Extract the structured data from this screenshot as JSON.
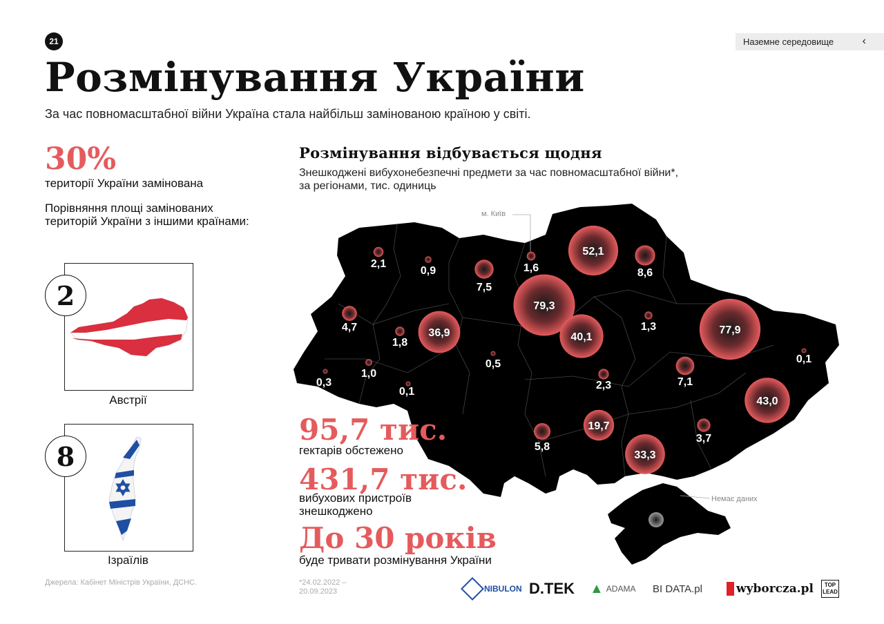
{
  "page_number": "21",
  "section_tab": {
    "label": "Наземне середовище"
  },
  "title": "Розмінування України",
  "subtitle": "За час повномасштабної війни Україна стала найбільш замінованою країною у світі.",
  "mined_share": {
    "value": "30%",
    "label": "території України замінована"
  },
  "comparison": {
    "label": "Порівняння площі замінованих територій України з іншими країнами:",
    "items": [
      {
        "number": "2",
        "country": "Австрії"
      },
      {
        "number": "8",
        "country": "Ізраїлів"
      }
    ]
  },
  "sources": "Джерела: Кабінет Міністрів України, ДСНС.",
  "chart_data": {
    "type": "bubble-map",
    "title": "Розмінування відбувається щодня",
    "subtitle_line1": "Знешкоджені вибухонебезпечні предмети за час повномасштабної війни*,",
    "subtitle_line2": "за регіонами, тис. одиниць",
    "annotations": {
      "kyiv": "м. Київ",
      "no_data": "Немає даних"
    },
    "regions_values": [
      {
        "label": "2,1",
        "value": 2.1
      },
      {
        "label": "0,9",
        "value": 0.9
      },
      {
        "label": "7,5",
        "value": 7.5
      },
      {
        "label": "1,6",
        "value": 1.6
      },
      {
        "label": "52,1",
        "value": 52.1
      },
      {
        "label": "8,6",
        "value": 8.6
      },
      {
        "label": "4,7",
        "value": 4.7
      },
      {
        "label": "1,8",
        "value": 1.8
      },
      {
        "label": "36,9",
        "value": 36.9
      },
      {
        "label": "79,3",
        "value": 79.3
      },
      {
        "label": "40,1",
        "value": 40.1
      },
      {
        "label": "1,3",
        "value": 1.3
      },
      {
        "label": "77,9",
        "value": 77.9
      },
      {
        "label": "0,3",
        "value": 0.3
      },
      {
        "label": "1,0",
        "value": 1.0
      },
      {
        "label": "0,1",
        "value": 0.1
      },
      {
        "label": "0,5",
        "value": 0.5
      },
      {
        "label": "2,3",
        "value": 2.3
      },
      {
        "label": "7,1",
        "value": 7.1
      },
      {
        "label": "0,1",
        "value": 0.1
      },
      {
        "label": "43,0",
        "value": 43.0
      },
      {
        "label": "5,8",
        "value": 5.8
      },
      {
        "label": "19,7",
        "value": 19.7
      },
      {
        "label": "33,3",
        "value": 33.3
      },
      {
        "label": "3,7",
        "value": 3.7
      }
    ]
  },
  "key_stats": [
    {
      "value": "95,7 тис.",
      "label_lines": [
        "гектарів обстежено"
      ]
    },
    {
      "value": "431,7 тис.",
      "label_lines": [
        "вибухових пристроїв",
        "знешкоджено"
      ]
    },
    {
      "value": "До 30 років",
      "label_lines": [
        "буде тривати розмінування України"
      ]
    }
  ],
  "footnote": "*24.02.2022 – 20.09.2023",
  "partners": {
    "nibulon": "NIBULON",
    "dtek": "D.TEK",
    "adama": "ADAMA",
    "biodata": "BI DATA.pl",
    "wyborcza": "wyborcza.pl",
    "toplead_1": "TOP",
    "toplead_2": "LEAD"
  },
  "colors": {
    "accent": "#e55b5d",
    "map": "#000000",
    "bubble": "#e55b5d"
  }
}
